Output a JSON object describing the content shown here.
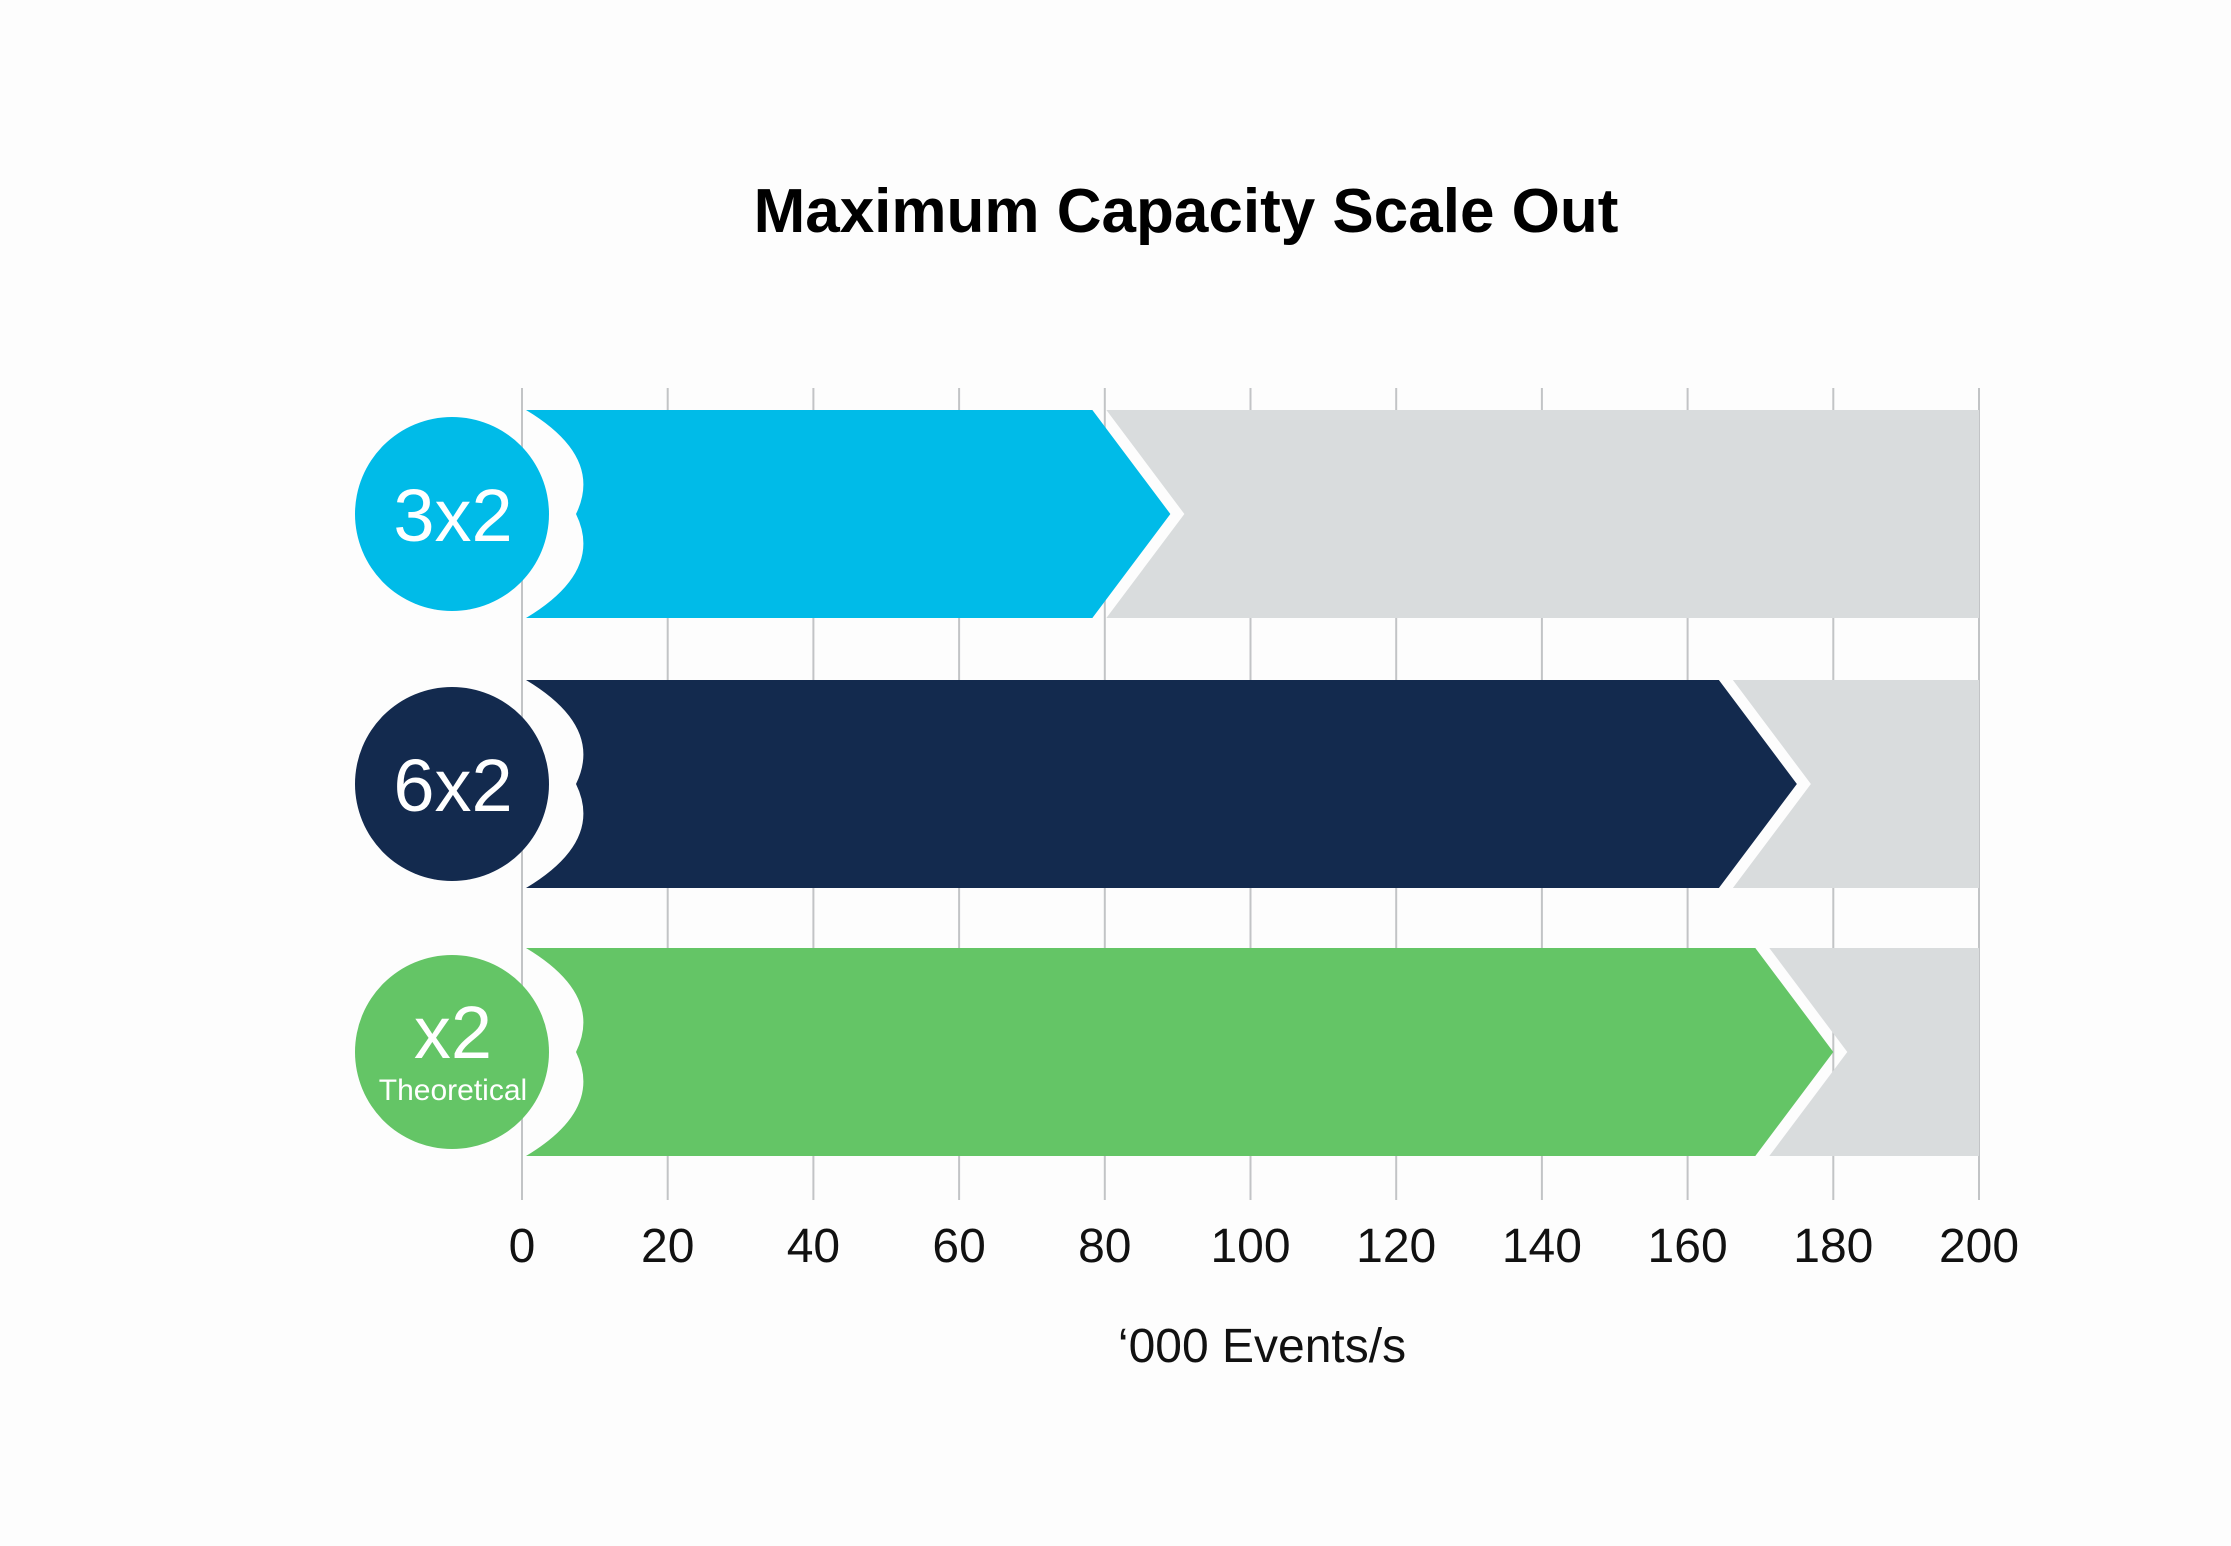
{
  "chart_data": {
    "type": "bar",
    "orientation": "horizontal",
    "title": "Maximum Capacity Scale Out",
    "xlabel": "‘000 Events/s",
    "ylabel": "",
    "xlim": [
      0,
      200
    ],
    "x_ticks": [
      "0",
      "20",
      "40",
      "60",
      "80",
      "100",
      "120",
      "140",
      "160",
      "180",
      "200"
    ],
    "grid": true,
    "background_bar_color": "#d9dcdd",
    "categories": [
      {
        "label": "3x2",
        "sublabel": "",
        "value": 89,
        "color": "#00bbe8"
      },
      {
        "label": "6x2",
        "sublabel": "",
        "value": 175,
        "color": "#132a4e"
      },
      {
        "label": "x2",
        "sublabel": "Theoretical",
        "value": 180,
        "color": "#64c566"
      }
    ]
  }
}
